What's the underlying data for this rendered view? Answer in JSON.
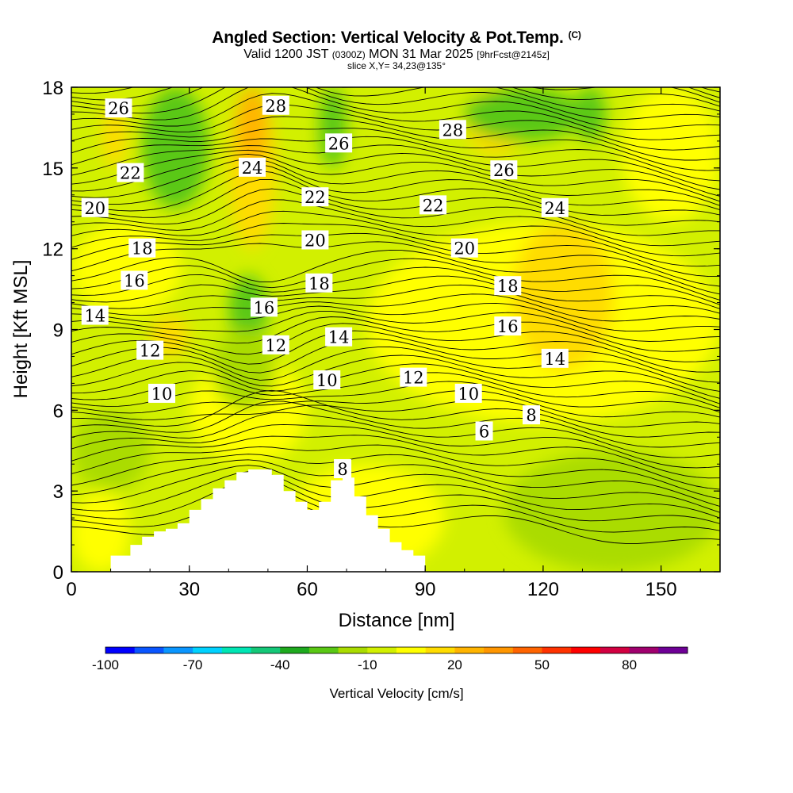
{
  "title": {
    "main": "Angled Section: Vertical Velocity & Pot.Temp.",
    "copyright": "(C)",
    "valid_prefix": "Valid 1200 JST",
    "valid_utc": "(0300Z)",
    "valid_date": "MON 31 Mar 2025",
    "forecast": "[9hrFcst@2145z]",
    "slice": "slice X,Y= 34,23@135°"
  },
  "chart_data": {
    "type": "heatmap",
    "xlabel": "Distance [nm]",
    "ylabel": "Height [Kft MSL]",
    "xlim": [
      0,
      165
    ],
    "ylim": [
      0,
      18
    ],
    "xticks": [
      0,
      30,
      60,
      90,
      120,
      150
    ],
    "yticks": [
      0,
      3,
      6,
      9,
      12,
      15,
      18
    ],
    "colorbar": {
      "title": "Vertical Velocity [cm/s]",
      "min": -100,
      "max": 100,
      "step": 10,
      "tick_values": [
        -100,
        -70,
        -40,
        -10,
        20,
        50,
        80
      ],
      "tick_labels": [
        "-100",
        "-70",
        "-40",
        "-10",
        "20",
        "50",
        "80"
      ],
      "colors": [
        "#0000ff",
        "#0a55ff",
        "#0a96ff",
        "#00d2ff",
        "#00e6b4",
        "#14c878",
        "#1eaa1e",
        "#5ac814",
        "#aadc00",
        "#d2f000",
        "#ffff00",
        "#ffdc00",
        "#ffb400",
        "#ff9600",
        "#ff6400",
        "#ff3200",
        "#ff0000",
        "#d20041",
        "#a0006e",
        "#6e0096"
      ]
    },
    "terrain_height_kft": [
      [
        10,
        0.6
      ],
      [
        15,
        1.0
      ],
      [
        18,
        1.3
      ],
      [
        21,
        1.5
      ],
      [
        24,
        1.6
      ],
      [
        27,
        1.8
      ],
      [
        30,
        2.3
      ],
      [
        33,
        2.7
      ],
      [
        36,
        3.1
      ],
      [
        39,
        3.4
      ],
      [
        42,
        3.7
      ],
      [
        45,
        3.8
      ],
      [
        48,
        3.8
      ],
      [
        51,
        3.6
      ],
      [
        54,
        3.0
      ],
      [
        57,
        2.6
      ],
      [
        60,
        2.3
      ],
      [
        63,
        2.6
      ],
      [
        66,
        3.4
      ],
      [
        69,
        3.5
      ],
      [
        72,
        2.8
      ],
      [
        75,
        2.1
      ],
      [
        78,
        1.6
      ],
      [
        81,
        1.1
      ],
      [
        84,
        0.8
      ],
      [
        87,
        0.6
      ],
      [
        90,
        0.0
      ]
    ],
    "potential_temperature_contours": [
      {
        "level": 6,
        "label_at": [
          105,
          5.2
        ]
      },
      {
        "level": 8,
        "label_at": [
          69,
          3.8
        ]
      },
      {
        "level": 8,
        "label_at": [
          117,
          5.8
        ]
      },
      {
        "level": 10,
        "label_at": [
          23,
          6.6
        ]
      },
      {
        "level": 10,
        "label_at": [
          65,
          7.1
        ]
      },
      {
        "level": 10,
        "label_at": [
          101,
          6.6
        ]
      },
      {
        "level": 12,
        "label_at": [
          20,
          8.2
        ]
      },
      {
        "level": 12,
        "label_at": [
          52,
          8.4
        ]
      },
      {
        "level": 12,
        "label_at": [
          87,
          7.2
        ]
      },
      {
        "level": 14,
        "label_at": [
          6,
          9.5
        ]
      },
      {
        "level": 14,
        "label_at": [
          68,
          8.7
        ]
      },
      {
        "level": 14,
        "label_at": [
          123,
          7.9
        ]
      },
      {
        "level": 16,
        "label_at": [
          16,
          10.8
        ]
      },
      {
        "level": 16,
        "label_at": [
          49,
          9.8
        ]
      },
      {
        "level": 16,
        "label_at": [
          111,
          9.1
        ]
      },
      {
        "level": 18,
        "label_at": [
          18,
          12.0
        ]
      },
      {
        "level": 18,
        "label_at": [
          63,
          10.7
        ]
      },
      {
        "level": 18,
        "label_at": [
          111,
          10.6
        ]
      },
      {
        "level": 20,
        "label_at": [
          6,
          13.5
        ]
      },
      {
        "level": 20,
        "label_at": [
          62,
          12.3
        ]
      },
      {
        "level": 20,
        "label_at": [
          100,
          12.0
        ]
      },
      {
        "level": 22,
        "label_at": [
          15,
          14.8
        ]
      },
      {
        "level": 22,
        "label_at": [
          62,
          13.9
        ]
      },
      {
        "level": 22,
        "label_at": [
          92,
          13.6
        ]
      },
      {
        "level": 24,
        "label_at": [
          46,
          15.0
        ]
      },
      {
        "level": 24,
        "label_at": [
          123,
          13.5
        ]
      },
      {
        "level": 26,
        "label_at": [
          12,
          17.2
        ]
      },
      {
        "level": 26,
        "label_at": [
          68,
          15.9
        ]
      },
      {
        "level": 26,
        "label_at": [
          110,
          14.9
        ]
      },
      {
        "level": 28,
        "label_at": [
          52,
          17.3
        ]
      },
      {
        "level": 28,
        "label_at": [
          97,
          16.4
        ]
      }
    ],
    "vertical_velocity_regions": [
      {
        "value": -10,
        "x": [
          0,
          165
        ],
        "y": [
          0,
          18
        ]
      },
      {
        "value": 5,
        "x": [
          0,
          28
        ],
        "y": [
          9.5,
          13
        ]
      },
      {
        "value": 5,
        "x": [
          30,
          60
        ],
        "y": [
          4,
          8
        ]
      },
      {
        "value": 5,
        "x": [
          75,
          165
        ],
        "y": [
          5.5,
          13
        ]
      },
      {
        "value": 5,
        "x": [
          55,
          95
        ],
        "y": [
          0,
          4
        ]
      },
      {
        "value": 5,
        "x": [
          140,
          165
        ],
        "y": [
          13,
          18
        ]
      },
      {
        "value": 5,
        "x": [
          0,
          15
        ],
        "y": [
          0,
          3
        ]
      },
      {
        "value": 15,
        "x": [
          40,
          52
        ],
        "y": [
          12,
          18
        ]
      },
      {
        "value": 15,
        "x": [
          112,
          138
        ],
        "y": [
          7.5,
          13
        ]
      },
      {
        "value": 15,
        "x": [
          8,
          14
        ],
        "y": [
          15,
          17.5
        ]
      },
      {
        "value": 15,
        "x": [
          20,
          30
        ],
        "y": [
          8,
          9.5
        ]
      },
      {
        "value": 15,
        "x": [
          100,
          116
        ],
        "y": [
          15.5,
          18
        ]
      },
      {
        "value": 25,
        "x": [
          42,
          50
        ],
        "y": [
          15,
          18
        ]
      },
      {
        "value": -25,
        "x": [
          18,
          35
        ],
        "y": [
          13.5,
          18
        ]
      },
      {
        "value": -25,
        "x": [
          40,
          50
        ],
        "y": [
          8.5,
          11
        ]
      },
      {
        "value": -25,
        "x": [
          63,
          70
        ],
        "y": [
          15,
          18
        ]
      },
      {
        "value": -25,
        "x": [
          100,
          130
        ],
        "y": [
          16,
          18
        ]
      },
      {
        "value": -25,
        "x": [
          128,
          136
        ],
        "y": [
          16,
          18
        ]
      },
      {
        "value": -20,
        "x": [
          110,
          165
        ],
        "y": [
          0,
          4.5
        ]
      },
      {
        "value": -20,
        "x": [
          0,
          20
        ],
        "y": [
          3,
          6
        ]
      },
      {
        "value": -20,
        "x": [
          36,
          52
        ],
        "y": [
          6,
          9
        ]
      }
    ]
  }
}
